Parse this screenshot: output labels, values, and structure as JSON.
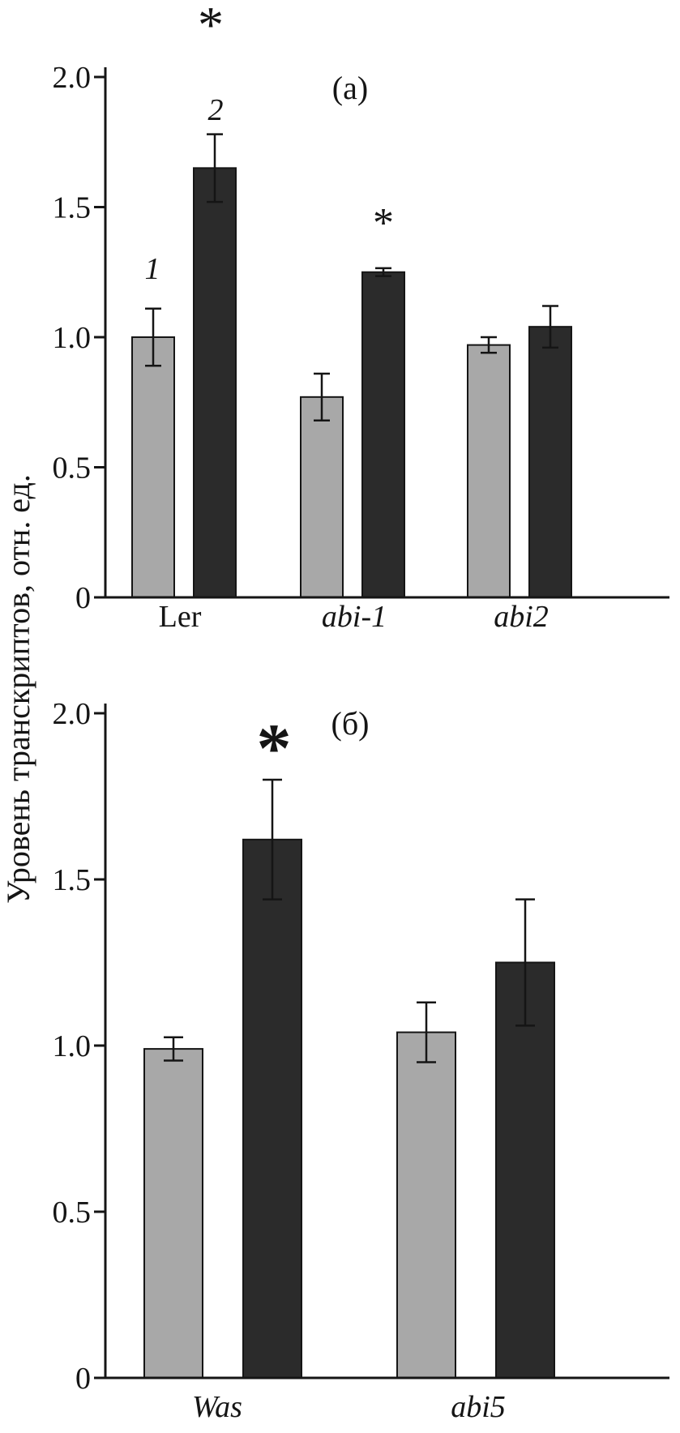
{
  "figure": {
    "ylabel": "Уровень транскриптов, отн. ед."
  },
  "chart_data": [
    {
      "type": "bar",
      "panel_label": "(а)",
      "categories": [
        "Ler",
        "abi-1",
        "abi2"
      ],
      "series": [
        {
          "name": "1",
          "color": "#a8a8a8",
          "values": [
            1.0,
            0.77,
            0.97
          ],
          "errors": [
            0.11,
            0.09,
            0.03
          ]
        },
        {
          "name": "2",
          "color": "#2b2b2b",
          "values": [
            1.65,
            1.25,
            1.04
          ],
          "errors": [
            0.13,
            0.015,
            0.08
          ]
        }
      ],
      "ylim": [
        0,
        2.0
      ],
      "yticks": [
        0,
        0.5,
        1.0,
        1.5,
        2.0
      ],
      "ytick_labels": [
        "0",
        "0.5",
        "1.0",
        "1.5",
        "2.0"
      ],
      "bar_number_labels": [
        "1",
        "2"
      ],
      "significance": [
        {
          "category": "Ler",
          "series": "2",
          "marker": "*"
        },
        {
          "category": "abi-1",
          "series": "2",
          "marker": "*"
        }
      ],
      "legend_position": "none",
      "grid": false
    },
    {
      "type": "bar",
      "panel_label": "(б)",
      "categories": [
        "Was",
        "abi5"
      ],
      "series": [
        {
          "name": "1",
          "color": "#a8a8a8",
          "values": [
            0.99,
            1.04
          ],
          "errors": [
            0.035,
            0.09
          ]
        },
        {
          "name": "2",
          "color": "#2b2b2b",
          "values": [
            1.62,
            1.25
          ],
          "errors": [
            0.18,
            0.19
          ]
        }
      ],
      "ylim": [
        0,
        2.0
      ],
      "yticks": [
        0,
        0.5,
        1.0,
        1.5,
        2.0
      ],
      "ytick_labels": [
        "0",
        "0.5",
        "1.0",
        "1.5",
        "2.0"
      ],
      "significance": [
        {
          "category": "Was",
          "series": "2",
          "marker": "*"
        }
      ],
      "legend_position": "none",
      "grid": false
    }
  ]
}
